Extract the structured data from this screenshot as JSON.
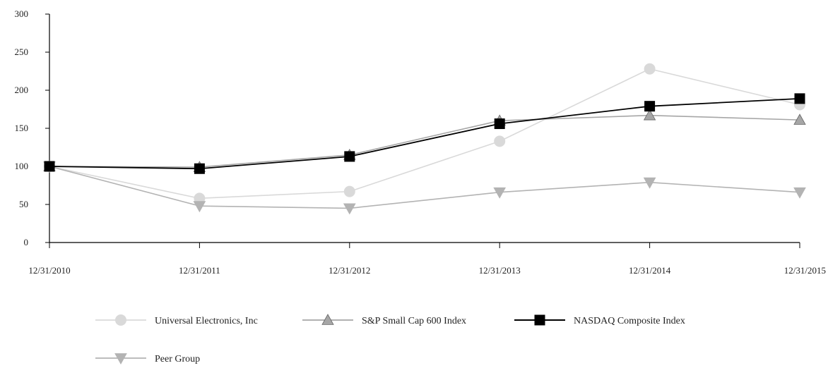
{
  "chart_data": {
    "type": "line",
    "title": "",
    "xlabel": "",
    "ylabel": "",
    "ylim": [
      0,
      300
    ],
    "yticks": [
      0,
      50,
      100,
      150,
      200,
      250,
      300
    ],
    "grid": false,
    "legend_position": "bottom-left",
    "categories": [
      "12/31/2010",
      "12/31/2011",
      "12/31/2012",
      "12/31/2013",
      "12/31/2014",
      "12/31/2015"
    ],
    "series": [
      {
        "name": "Universal Electronics, Inc",
        "values": [
          100,
          58,
          67,
          133,
          228,
          181
        ],
        "color": "#d9d9d9",
        "marker": "circle"
      },
      {
        "name": "S&P Small Cap 600 Index",
        "values": [
          100,
          99,
          115,
          160,
          167,
          161
        ],
        "color": "#a6a6a6",
        "marker": "triangle-up"
      },
      {
        "name": "NASDAQ Composite Index",
        "values": [
          100,
          97,
          113,
          156,
          179,
          189
        ],
        "color": "#000000",
        "marker": "square"
      },
      {
        "name": "Peer Group",
        "values": [
          100,
          48,
          45,
          66,
          79,
          66
        ],
        "color": "#b3b3b3",
        "marker": "triangle-down"
      }
    ]
  }
}
